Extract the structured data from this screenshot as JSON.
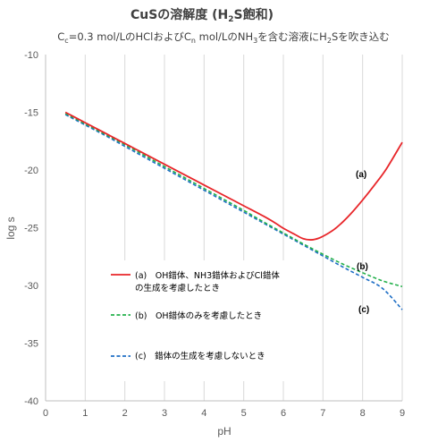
{
  "chart_data": {
    "type": "line",
    "title": {
      "main": "CuSの溶解度 (H",
      "sub": "2",
      "end": "S飽和)"
    },
    "subtitle": {
      "p1": "C",
      "s1": "c",
      "p2": "=0.3 mol/LのHClおよびC",
      "s2": "n",
      "p3": " mol/LのNH",
      "s3": "3",
      "p4": "を含む溶液にH",
      "s4": "2",
      "p5": "Sを吹き込む"
    },
    "xlabel": "pH",
    "ylabel": "log s",
    "xlim": [
      0,
      9
    ],
    "ylim": [
      -40,
      -10
    ],
    "x_ticks": [
      "0",
      "1",
      "2",
      "3",
      "4",
      "5",
      "6",
      "7",
      "8",
      "9"
    ],
    "y_ticks": [
      "-10",
      "-15",
      "-20",
      "-25",
      "-30",
      "-35",
      "-40"
    ],
    "grid": "vertical",
    "series": [
      {
        "name": "(a)　OH錯体、NH3錯体およびCl錯体の生成を考慮したとき",
        "label": "(a)",
        "color": "#e8262a",
        "dash": "solid",
        "points": [
          [
            0.5,
            -15.0
          ],
          [
            1.0,
            -15.9
          ],
          [
            1.5,
            -16.8
          ],
          [
            2.0,
            -17.7
          ],
          [
            2.5,
            -18.6
          ],
          [
            3.0,
            -19.5
          ],
          [
            3.5,
            -20.4
          ],
          [
            4.0,
            -21.3
          ],
          [
            4.5,
            -22.2
          ],
          [
            5.0,
            -23.1
          ],
          [
            5.5,
            -24.0
          ],
          [
            5.8,
            -24.6
          ],
          [
            6.0,
            -25.05
          ],
          [
            6.3,
            -25.6
          ],
          [
            6.5,
            -25.95
          ],
          [
            6.7,
            -26.05
          ],
          [
            6.9,
            -25.9
          ],
          [
            7.1,
            -25.55
          ],
          [
            7.3,
            -25.1
          ],
          [
            7.5,
            -24.5
          ],
          [
            7.7,
            -23.8
          ],
          [
            8.0,
            -22.6
          ],
          [
            8.3,
            -21.3
          ],
          [
            8.6,
            -19.9
          ],
          [
            9.0,
            -17.6
          ]
        ]
      },
      {
        "name": "(b)　OH錯体のみを考慮したとき",
        "label": "(b)",
        "color": "#22b04a",
        "dash": "dashed",
        "points": [
          [
            0.5,
            -15.1
          ],
          [
            1.0,
            -16.0
          ],
          [
            1.5,
            -16.9
          ],
          [
            2.0,
            -17.8
          ],
          [
            2.5,
            -18.75
          ],
          [
            3.0,
            -19.7
          ],
          [
            3.5,
            -20.65
          ],
          [
            4.0,
            -21.6
          ],
          [
            4.5,
            -22.55
          ],
          [
            5.0,
            -23.5
          ],
          [
            5.5,
            -24.5
          ],
          [
            6.0,
            -25.45
          ],
          [
            6.5,
            -26.4
          ],
          [
            7.0,
            -27.3
          ],
          [
            7.5,
            -28.15
          ],
          [
            8.0,
            -28.9
          ],
          [
            8.5,
            -29.6
          ],
          [
            9.0,
            -30.1
          ]
        ]
      },
      {
        "name": "(c)　錯体の生成を考慮しないとき",
        "label": "(c)",
        "color": "#1f6fc5",
        "dash": "dashed",
        "points": [
          [
            0.5,
            -15.2
          ],
          [
            1.0,
            -16.1
          ],
          [
            1.5,
            -17.0
          ],
          [
            2.0,
            -17.95
          ],
          [
            2.5,
            -18.9
          ],
          [
            3.0,
            -19.85
          ],
          [
            3.5,
            -20.8
          ],
          [
            4.0,
            -21.75
          ],
          [
            4.5,
            -22.7
          ],
          [
            5.0,
            -23.65
          ],
          [
            5.5,
            -24.6
          ],
          [
            6.0,
            -25.55
          ],
          [
            6.5,
            -26.5
          ],
          [
            7.0,
            -27.45
          ],
          [
            7.5,
            -28.4
          ],
          [
            8.0,
            -29.3
          ],
          [
            8.5,
            -30.25
          ],
          [
            9.0,
            -32.1
          ]
        ]
      }
    ],
    "legend": {
      "placement": "lower-left",
      "entries": {
        "a1": "(a)　OH錯体、NH3錯体およびCl錯体",
        "a2": "の生成を考慮したとき",
        "b": "(b)　OH錯体のみを考慮したとき",
        "c": "(c)　錯体の生成を考慮しないとき"
      }
    }
  }
}
